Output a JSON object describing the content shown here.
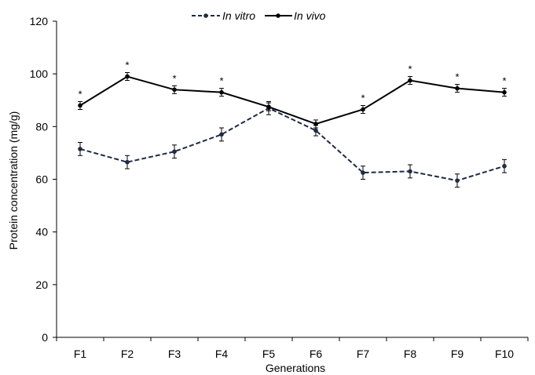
{
  "chart_data": {
    "type": "line",
    "title": "",
    "xlabel": "Generations",
    "ylabel": "Protein concentration (mg/g)",
    "ylim": [
      0,
      120
    ],
    "yticks": [
      0,
      20,
      40,
      60,
      80,
      100,
      120
    ],
    "categories": [
      "F1",
      "F2",
      "F3",
      "F4",
      "F5",
      "F6",
      "F7",
      "F8",
      "F9",
      "F10"
    ],
    "legend_position": "top-center",
    "grid": false,
    "series": [
      {
        "name": "In vitro",
        "style": "dashed",
        "color": "#1f2a44",
        "values": [
          71.5,
          66.5,
          70.5,
          77,
          87,
          78.5,
          62.5,
          63,
          59.5,
          65
        ],
        "errors": [
          2.5,
          2.5,
          2.5,
          2.5,
          2.5,
          2,
          2.5,
          2.5,
          2.5,
          2.5
        ]
      },
      {
        "name": "In vivo",
        "style": "solid",
        "color": "#000000",
        "values": [
          88,
          99,
          94,
          93,
          87.5,
          81,
          86.5,
          97.5,
          94.5,
          93
        ],
        "errors": [
          1.5,
          1.5,
          1.5,
          1.5,
          1.5,
          1.5,
          1.5,
          1.5,
          1.5,
          1.5
        ]
      }
    ],
    "significance_marks": [
      "*",
      "*",
      "*",
      "*",
      "",
      "",
      "*",
      "*",
      "*",
      "*"
    ]
  }
}
